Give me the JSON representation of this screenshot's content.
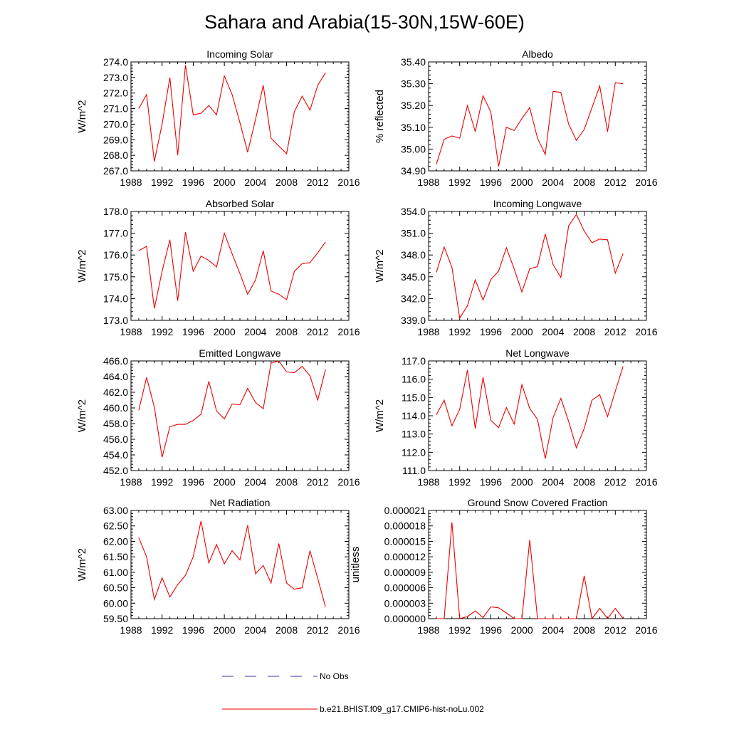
{
  "page_title": "Sahara and Arabia(15-30N,15W-60E)",
  "legend": [
    {
      "label": "No Obs",
      "color": "#3333aa",
      "dashed": true
    },
    {
      "label": "b.e21.BHIST.f09_g17.CMIP6-hist-noLu.002",
      "color": "#ee0000",
      "dashed": false
    }
  ],
  "chart_data": [
    {
      "type": "line",
      "title": "Incoming Solar",
      "ylabel": "W/m^2",
      "xlim": [
        1988,
        2016
      ],
      "ylim": [
        267.0,
        274.0
      ],
      "xticks": [
        1988,
        1992,
        1996,
        2000,
        2004,
        2008,
        2012,
        2016
      ],
      "yticks": [
        "267.0",
        "268.0",
        "269.0",
        "270.0",
        "271.0",
        "272.0",
        "273.0",
        "274.0"
      ],
      "x": [
        1989,
        1990,
        1991,
        1992,
        1993,
        1994,
        1995,
        1996,
        1997,
        1998,
        1999,
        2000,
        2001,
        2002,
        2003,
        2004,
        2005,
        2006,
        2007,
        2008,
        2009,
        2010,
        2011,
        2012,
        2013
      ],
      "series": [
        {
          "values": [
            271.0,
            271.9,
            267.6,
            270.0,
            273.0,
            268.0,
            273.8,
            270.6,
            270.7,
            271.2,
            270.6,
            273.1,
            271.9,
            270.1,
            268.2,
            270.3,
            272.5,
            269.1,
            268.6,
            268.1,
            270.8,
            271.8,
            270.9,
            272.5,
            273.3
          ]
        }
      ]
    },
    {
      "type": "line",
      "title": "Albedo",
      "ylabel": "% reflected",
      "xlim": [
        1988,
        2016
      ],
      "ylim": [
        34.9,
        35.4
      ],
      "xticks": [
        1988,
        1992,
        1996,
        2000,
        2004,
        2008,
        2012,
        2016
      ],
      "yticks": [
        "34.90",
        "35.00",
        "35.10",
        "35.20",
        "35.30",
        "35.40"
      ],
      "x": [
        1989,
        1990,
        1991,
        1992,
        1993,
        1994,
        1995,
        1996,
        1997,
        1998,
        1999,
        2000,
        2001,
        2002,
        2003,
        2004,
        2005,
        2006,
        2007,
        2008,
        2009,
        2010,
        2011,
        2012,
        2013
      ],
      "series": [
        {
          "values": [
            34.93,
            35.045,
            35.06,
            35.05,
            35.2,
            35.08,
            35.245,
            35.17,
            34.92,
            35.1,
            35.085,
            35.14,
            35.19,
            35.05,
            34.975,
            35.265,
            35.26,
            35.115,
            35.04,
            35.09,
            35.19,
            35.29,
            35.08,
            35.305,
            35.3
          ]
        }
      ]
    },
    {
      "type": "line",
      "title": "Absorbed Solar",
      "ylabel": "W/m^2",
      "xlim": [
        1988,
        2016
      ],
      "ylim": [
        173.0,
        178.0
      ],
      "xticks": [
        1988,
        1992,
        1996,
        2000,
        2004,
        2008,
        2012,
        2016
      ],
      "yticks": [
        "173.0",
        "174.0",
        "175.0",
        "176.0",
        "177.0",
        "178.0"
      ],
      "x": [
        1989,
        1990,
        1991,
        1992,
        1993,
        1994,
        1995,
        1996,
        1997,
        1998,
        1999,
        2000,
        2001,
        2002,
        2003,
        2004,
        2005,
        2006,
        2007,
        2008,
        2009,
        2010,
        2011,
        2012,
        2013
      ],
      "series": [
        {
          "values": [
            176.2,
            176.4,
            173.55,
            175.25,
            176.7,
            173.9,
            177.05,
            175.25,
            175.95,
            175.75,
            175.45,
            177.0,
            176.05,
            175.15,
            174.2,
            174.85,
            176.2,
            174.35,
            174.2,
            173.95,
            175.25,
            175.6,
            175.65,
            176.1,
            176.6
          ]
        }
      ]
    },
    {
      "type": "line",
      "title": "Incoming Longwave",
      "ylabel": "W/m^2",
      "xlim": [
        1988,
        2016
      ],
      "ylim": [
        339.0,
        354.0
      ],
      "xticks": [
        1988,
        1992,
        1996,
        2000,
        2004,
        2008,
        2012,
        2016
      ],
      "yticks": [
        "339.0",
        "342.0",
        "345.0",
        "348.0",
        "351.0",
        "354.0"
      ],
      "x": [
        1989,
        1990,
        1991,
        1992,
        1993,
        1994,
        1995,
        1996,
        1997,
        1998,
        1999,
        2000,
        2001,
        2002,
        2003,
        2004,
        2005,
        2006,
        2007,
        2008,
        2009,
        2010,
        2011,
        2012,
        2013
      ],
      "series": [
        {
          "values": [
            345.6,
            349.1,
            346.3,
            339.3,
            341.0,
            344.6,
            341.8,
            344.6,
            345.8,
            349.0,
            346.1,
            342.9,
            346.1,
            346.4,
            350.9,
            346.7,
            344.9,
            352.0,
            353.6,
            351.3,
            349.7,
            350.2,
            350.1,
            345.5,
            348.2
          ]
        }
      ]
    },
    {
      "type": "line",
      "title": "Emitted Longwave",
      "ylabel": "W/m^2",
      "xlim": [
        1988,
        2016
      ],
      "ylim": [
        452.0,
        466.0
      ],
      "xticks": [
        1988,
        1992,
        1996,
        2000,
        2004,
        2008,
        2012,
        2016
      ],
      "yticks": [
        "452.0",
        "454.0",
        "456.0",
        "458.0",
        "460.0",
        "462.0",
        "464.0",
        "466.0"
      ],
      "x": [
        1989,
        1990,
        1991,
        1992,
        1993,
        1994,
        1995,
        1996,
        1997,
        1998,
        1999,
        2000,
        2001,
        2002,
        2003,
        2004,
        2005,
        2006,
        2007,
        2008,
        2009,
        2010,
        2011,
        2012,
        2013
      ],
      "series": [
        {
          "values": [
            459.7,
            463.9,
            460.1,
            453.7,
            457.6,
            457.9,
            457.9,
            458.4,
            459.2,
            463.4,
            459.6,
            458.6,
            460.5,
            460.4,
            462.5,
            460.7,
            459.9,
            465.7,
            466.0,
            464.6,
            464.5,
            465.3,
            464.1,
            461.0,
            464.9
          ]
        }
      ]
    },
    {
      "type": "line",
      "title": "Net Longwave",
      "ylabel": "W/m^2",
      "xlim": [
        1988,
        2016
      ],
      "ylim": [
        111.0,
        117.0
      ],
      "xticks": [
        1988,
        1992,
        1996,
        2000,
        2004,
        2008,
        2012,
        2016
      ],
      "yticks": [
        "111.0",
        "112.0",
        "113.0",
        "114.0",
        "115.0",
        "116.0",
        "117.0"
      ],
      "x": [
        1989,
        1990,
        1991,
        1992,
        1993,
        1994,
        1995,
        1996,
        1997,
        1998,
        1999,
        2000,
        2001,
        2002,
        2003,
        2004,
        2005,
        2006,
        2007,
        2008,
        2009,
        2010,
        2011,
        2012,
        2013
      ],
      "series": [
        {
          "values": [
            114.05,
            114.85,
            113.45,
            114.35,
            116.5,
            113.3,
            116.1,
            113.75,
            113.35,
            114.45,
            113.55,
            115.7,
            114.4,
            113.8,
            111.65,
            113.9,
            114.95,
            113.7,
            112.25,
            113.3,
            114.85,
            115.15,
            113.95,
            115.35,
            116.7
          ]
        }
      ]
    },
    {
      "type": "line",
      "title": "Net Radiation",
      "ylabel": "W/m^2",
      "xlim": [
        1988,
        2016
      ],
      "ylim": [
        59.5,
        63.0
      ],
      "xticks": [
        1988,
        1992,
        1996,
        2000,
        2004,
        2008,
        2012,
        2016
      ],
      "yticks": [
        "59.50",
        "60.00",
        "60.50",
        "61.00",
        "61.50",
        "62.00",
        "62.50",
        "63.00"
      ],
      "x": [
        1989,
        1990,
        1991,
        1992,
        1993,
        1994,
        1995,
        1996,
        1997,
        1998,
        1999,
        2000,
        2001,
        2002,
        2003,
        2004,
        2005,
        2006,
        2007,
        2008,
        2009,
        2010,
        2011,
        2012,
        2013
      ],
      "series": [
        {
          "values": [
            62.12,
            61.5,
            60.12,
            60.82,
            60.2,
            60.6,
            60.9,
            61.5,
            62.66,
            61.3,
            61.9,
            61.27,
            61.7,
            61.4,
            62.52,
            60.95,
            61.22,
            60.65,
            61.93,
            60.65,
            60.45,
            60.5,
            61.7,
            60.8,
            59.88
          ]
        }
      ]
    },
    {
      "type": "line",
      "title": "Ground Snow Covered Fraction",
      "ylabel": "unitless",
      "xlim": [
        1988,
        2016
      ],
      "ylim": [
        0.0,
        2.1e-05
      ],
      "xticks": [
        1988,
        1992,
        1996,
        2000,
        2004,
        2008,
        2012,
        2016
      ],
      "yticks": [
        "0.000000",
        "0.000003",
        "0.000006",
        "0.000009",
        "0.000012",
        "0.000015",
        "0.000018",
        "0.000021"
      ],
      "x": [
        1989,
        1990,
        1991,
        1992,
        1993,
        1994,
        1995,
        1996,
        1997,
        1998,
        1999,
        2000,
        2001,
        2002,
        2003,
        2004,
        2005,
        2006,
        2007,
        2008,
        2009,
        2010,
        2011,
        2012,
        2013
      ],
      "series": [
        {
          "values": [
            0.0,
            0.0,
            1.87e-05,
            0.0,
            4e-07,
            1.5e-06,
            2e-07,
            2.3e-06,
            2.1e-06,
            1.1e-06,
            0.0,
            0.0,
            1.53e-05,
            0.0,
            0.0,
            0.0,
            0.0,
            0.0,
            0.0,
            8.3e-06,
            0.0,
            2e-06,
            0.0,
            2e-06,
            0.0
          ]
        }
      ]
    }
  ]
}
